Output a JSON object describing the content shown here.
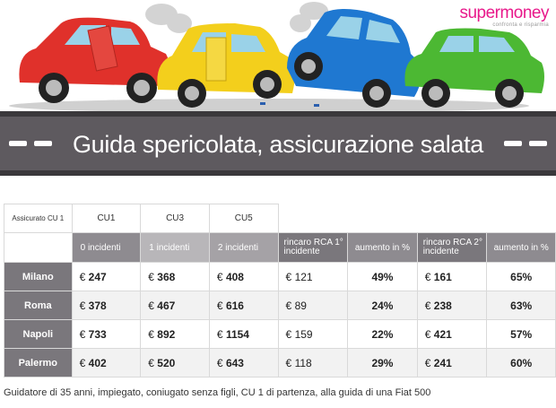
{
  "brand": {
    "logo_word": "supermoney",
    "logo_tagline": "confronta e risparmia"
  },
  "banner": {
    "title": "Guida spericolata, assicurazione salata"
  },
  "table": {
    "corner_label": "Assicurato CU 1",
    "cu_headers": [
      "CU1",
      "CU3",
      "CU5"
    ],
    "column_headers": [
      "0 incidenti",
      "1 incidenti",
      "2 incidenti",
      "rincaro RCA 1° incidente",
      "aumento in %",
      "rincaro RCA 2° incidente",
      "aumento in %"
    ],
    "currency": "€",
    "rows": [
      {
        "city": "Milano",
        "cu1": "247",
        "cu3": "368",
        "cu5": "408",
        "rincaro1": "121",
        "aumento1": "49%",
        "rincaro2": "161",
        "aumento2": "65%"
      },
      {
        "city": "Roma",
        "cu1": "378",
        "cu3": "467",
        "cu5": "616",
        "rincaro1": "89",
        "aumento1": "24%",
        "rincaro2": "238",
        "aumento2": "63%"
      },
      {
        "city": "Napoli",
        "cu1": "733",
        "cu3": "892",
        "cu5": "1154",
        "rincaro1": "159",
        "aumento1": "22%",
        "rincaro2": "421",
        "aumento2": "57%"
      },
      {
        "city": "Palermo",
        "cu1": "402",
        "cu3": "520",
        "cu5": "643",
        "rincaro1": "118",
        "aumento1": "29%",
        "rincaro2": "241",
        "aumento2": "60%"
      }
    ]
  },
  "footnote": "Guidatore di 35 anni, impiegato, coniugato senza  figli, CU 1 di partenza, alla guida di una Fiat 500",
  "colors": {
    "brand_pink": "#e8198b",
    "road": "#5e5a5f",
    "car_red": "#e0312b",
    "car_yellow": "#f3cf1c",
    "car_blue": "#1f78d1",
    "car_green": "#4cb833"
  }
}
